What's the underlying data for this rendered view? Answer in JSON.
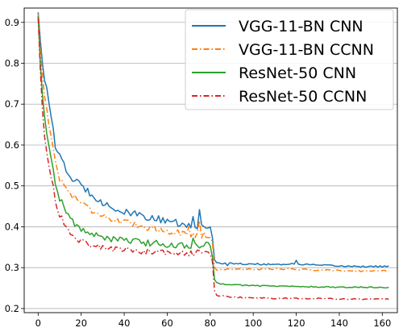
{
  "chart_data": {
    "type": "line",
    "title": "",
    "xlabel": "",
    "ylabel": "",
    "xlim": [
      -6.5,
      167
    ],
    "ylim": [
      0.19,
      0.935
    ],
    "xticks": [
      0,
      20,
      40,
      60,
      80,
      100,
      120,
      140,
      160
    ],
    "yticks": [
      0.2,
      0.3,
      0.4,
      0.5,
      0.6,
      0.7,
      0.8,
      0.9
    ],
    "ytick_labels": [
      "0.2",
      "0.3",
      "0.4",
      "0.5",
      "0.6",
      "0.7",
      "0.8",
      "0.9"
    ],
    "grid": "horizontal",
    "legend_position": "top-right",
    "num_epochs": 164,
    "series": [
      {
        "name": "VGG-11-BN CNN",
        "color": "#1f77b4",
        "style": "solid",
        "keypoints": [
          [
            0,
            0.925
          ],
          [
            1,
            0.86
          ],
          [
            2,
            0.8
          ],
          [
            3,
            0.76
          ],
          [
            4,
            0.74
          ],
          [
            5,
            0.7
          ],
          [
            6,
            0.67
          ],
          [
            7,
            0.64
          ],
          [
            8,
            0.6
          ],
          [
            10,
            0.57
          ],
          [
            12,
            0.55
          ],
          [
            15,
            0.52
          ],
          [
            18,
            0.51
          ],
          [
            20,
            0.5
          ],
          [
            25,
            0.48
          ],
          [
            30,
            0.46
          ],
          [
            35,
            0.445
          ],
          [
            40,
            0.435
          ],
          [
            45,
            0.43
          ],
          [
            50,
            0.425
          ],
          [
            55,
            0.42
          ],
          [
            60,
            0.41
          ],
          [
            65,
            0.405
          ],
          [
            70,
            0.4
          ],
          [
            75,
            0.4
          ],
          [
            79,
            0.4
          ],
          [
            80,
            0.395
          ],
          [
            81,
            0.38
          ],
          [
            82,
            0.32
          ],
          [
            83,
            0.312
          ],
          [
            90,
            0.31
          ],
          [
            100,
            0.309
          ],
          [
            110,
            0.308
          ],
          [
            120,
            0.309
          ],
          [
            130,
            0.306
          ],
          [
            140,
            0.304
          ],
          [
            150,
            0.303
          ],
          [
            163,
            0.303
          ]
        ],
        "noise": 0.009,
        "noise_late": 0.002,
        "spikes": [
          [
            75,
            0.442
          ],
          [
            64,
            0.418
          ],
          [
            72,
            0.425
          ],
          [
            88,
            0.305
          ],
          [
            120,
            0.318
          ]
        ]
      },
      {
        "name": "VGG-11-BN CCNN",
        "color": "#ff7f0e",
        "style": "dashdot",
        "keypoints": [
          [
            0,
            0.92
          ],
          [
            1,
            0.84
          ],
          [
            2,
            0.77
          ],
          [
            3,
            0.72
          ],
          [
            4,
            0.69
          ],
          [
            5,
            0.65
          ],
          [
            6,
            0.62
          ],
          [
            7,
            0.59
          ],
          [
            8,
            0.56
          ],
          [
            10,
            0.52
          ],
          [
            12,
            0.5
          ],
          [
            15,
            0.48
          ],
          [
            18,
            0.47
          ],
          [
            20,
            0.46
          ],
          [
            25,
            0.44
          ],
          [
            30,
            0.43
          ],
          [
            35,
            0.415
          ],
          [
            40,
            0.41
          ],
          [
            45,
            0.405
          ],
          [
            50,
            0.4
          ],
          [
            55,
            0.395
          ],
          [
            60,
            0.39
          ],
          [
            65,
            0.385
          ],
          [
            70,
            0.38
          ],
          [
            75,
            0.38
          ],
          [
            79,
            0.38
          ],
          [
            80,
            0.37
          ],
          [
            81,
            0.36
          ],
          [
            82,
            0.3
          ],
          [
            83,
            0.295
          ],
          [
            90,
            0.296
          ],
          [
            100,
            0.296
          ],
          [
            110,
            0.297
          ],
          [
            120,
            0.296
          ],
          [
            130,
            0.294
          ],
          [
            140,
            0.293
          ],
          [
            150,
            0.292
          ],
          [
            163,
            0.292
          ]
        ],
        "noise": 0.008,
        "noise_late": 0.0018,
        "spikes": [
          [
            75,
            0.415
          ],
          [
            70,
            0.4
          ]
        ]
      },
      {
        "name": "ResNet-50 CNN",
        "color": "#2ca02c",
        "style": "solid",
        "keypoints": [
          [
            0,
            0.915
          ],
          [
            1,
            0.8
          ],
          [
            2,
            0.72
          ],
          [
            3,
            0.67
          ],
          [
            4,
            0.63
          ],
          [
            5,
            0.6
          ],
          [
            6,
            0.57
          ],
          [
            7,
            0.54
          ],
          [
            8,
            0.51
          ],
          [
            10,
            0.47
          ],
          [
            12,
            0.45
          ],
          [
            15,
            0.42
          ],
          [
            18,
            0.4
          ],
          [
            20,
            0.395
          ],
          [
            25,
            0.38
          ],
          [
            30,
            0.375
          ],
          [
            35,
            0.37
          ],
          [
            40,
            0.365
          ],
          [
            45,
            0.365
          ],
          [
            50,
            0.36
          ],
          [
            55,
            0.36
          ],
          [
            60,
            0.355
          ],
          [
            65,
            0.355
          ],
          [
            70,
            0.355
          ],
          [
            75,
            0.355
          ],
          [
            79,
            0.355
          ],
          [
            80,
            0.35
          ],
          [
            81,
            0.33
          ],
          [
            82,
            0.27
          ],
          [
            83,
            0.262
          ],
          [
            90,
            0.258
          ],
          [
            100,
            0.256
          ],
          [
            110,
            0.255
          ],
          [
            120,
            0.254
          ],
          [
            130,
            0.253
          ],
          [
            140,
            0.252
          ],
          [
            150,
            0.252
          ],
          [
            163,
            0.252
          ]
        ],
        "noise": 0.008,
        "noise_late": 0.0015,
        "spikes": [
          [
            72,
            0.372
          ]
        ]
      },
      {
        "name": "ResNet-50 CCNN",
        "color": "#d62728",
        "style": "dashdot",
        "keypoints": [
          [
            0,
            0.91
          ],
          [
            1,
            0.78
          ],
          [
            2,
            0.69
          ],
          [
            3,
            0.62
          ],
          [
            4,
            0.58
          ],
          [
            5,
            0.55
          ],
          [
            6,
            0.52
          ],
          [
            7,
            0.5
          ],
          [
            8,
            0.46
          ],
          [
            10,
            0.43
          ],
          [
            12,
            0.41
          ],
          [
            15,
            0.38
          ],
          [
            18,
            0.37
          ],
          [
            20,
            0.365
          ],
          [
            25,
            0.355
          ],
          [
            30,
            0.35
          ],
          [
            35,
            0.345
          ],
          [
            40,
            0.345
          ],
          [
            45,
            0.34
          ],
          [
            50,
            0.34
          ],
          [
            55,
            0.338
          ],
          [
            60,
            0.336
          ],
          [
            65,
            0.335
          ],
          [
            70,
            0.335
          ],
          [
            75,
            0.335
          ],
          [
            79,
            0.335
          ],
          [
            80,
            0.33
          ],
          [
            81,
            0.31
          ],
          [
            82,
            0.245
          ],
          [
            83,
            0.232
          ],
          [
            90,
            0.228
          ],
          [
            100,
            0.226
          ],
          [
            110,
            0.225
          ],
          [
            120,
            0.225
          ],
          [
            130,
            0.224
          ],
          [
            140,
            0.224
          ],
          [
            150,
            0.223
          ],
          [
            163,
            0.223
          ]
        ],
        "noise": 0.008,
        "noise_late": 0.0015,
        "spikes": []
      }
    ]
  }
}
